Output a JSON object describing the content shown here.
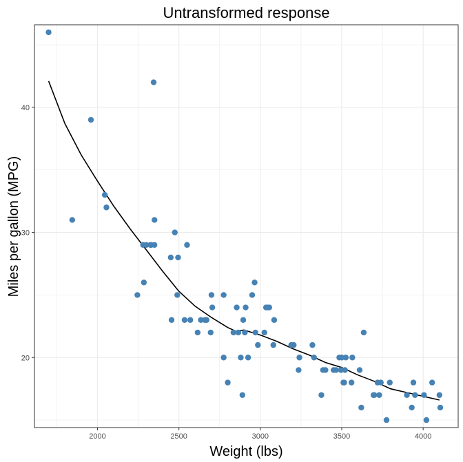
{
  "chart_data": {
    "type": "scatter",
    "title": "Untransformed response",
    "xlabel": "Weight (lbs)",
    "ylabel": "Miles per gallon (MPG)",
    "xlim": [
      1613,
      4215
    ],
    "ylim": [
      14.4,
      46.6
    ],
    "x_ticks": [
      "2000",
      "2500",
      "3000",
      "3500",
      "4000"
    ],
    "y_ticks": [
      "20",
      "30",
      "40"
    ],
    "grid": true,
    "colors": {
      "points": "#4682b4",
      "fit": "#000000",
      "grid": "#ebebeb",
      "panel_border": "#333333"
    },
    "series": [
      {
        "kind": "points",
        "x": [
          1700,
          1845,
          1960,
          2045,
          2055,
          2245,
          2280,
          2285,
          2300,
          2325,
          2330,
          2350,
          2345,
          2350,
          2450,
          2455,
          2475,
          2490,
          2495,
          2535,
          2550,
          2570,
          2615,
          2635,
          2660,
          2670,
          2695,
          2700,
          2705,
          2775,
          2775,
          2800,
          2835,
          2855,
          2865,
          2880,
          2890,
          2895,
          2905,
          2910,
          2925,
          2950,
          2965,
          2970,
          2985,
          3025,
          3035,
          3045,
          3055,
          3080,
          3085,
          3190,
          3205,
          3235,
          3240,
          3320,
          3330,
          3375,
          3385,
          3400,
          3450,
          3465,
          3485,
          3495,
          3500,
          3510,
          3515,
          3520,
          3525,
          3560,
          3565,
          3610,
          3620,
          3635,
          3695,
          3700,
          3720,
          3730,
          3740,
          3775,
          3795,
          3900,
          3930,
          3940,
          3950,
          4005,
          4020,
          4055,
          4100,
          4105
        ],
        "y": [
          46,
          31,
          39,
          33,
          32,
          25,
          29,
          26,
          29,
          29,
          29,
          29,
          42,
          31,
          28,
          23,
          30,
          25,
          28,
          23,
          29,
          23,
          22,
          23,
          23,
          23,
          22,
          25,
          24,
          25,
          20,
          18,
          22,
          24,
          22,
          20,
          17,
          23,
          22,
          24,
          20,
          25,
          26,
          22,
          21,
          22,
          24,
          24,
          24,
          21,
          23,
          21,
          21,
          19,
          20,
          21,
          20,
          17,
          19,
          19,
          19,
          19,
          20,
          19,
          20,
          18,
          18,
          19,
          20,
          18,
          20,
          19,
          16,
          22,
          17,
          17,
          18,
          17,
          18,
          15,
          18,
          17,
          16,
          18,
          17,
          17,
          15,
          18,
          17,
          16
        ]
      },
      {
        "kind": "smooth-line",
        "x": [
          1700,
          1800,
          1900,
          2000,
          2100,
          2200,
          2300,
          2400,
          2500,
          2600,
          2700,
          2800,
          2850,
          2900,
          3000,
          3100,
          3200,
          3300,
          3400,
          3500,
          3600,
          3700,
          3800,
          3900,
          4000,
          4100
        ],
        "y": [
          42.1,
          38.7,
          36.2,
          34.1,
          32.1,
          30.3,
          28.6,
          26.9,
          25.3,
          24.1,
          23.2,
          22.4,
          22.1,
          22.2,
          21.8,
          21.3,
          20.7,
          20.2,
          19.6,
          19.2,
          18.6,
          18.1,
          17.5,
          17.2,
          16.9,
          16.6
        ]
      }
    ]
  }
}
